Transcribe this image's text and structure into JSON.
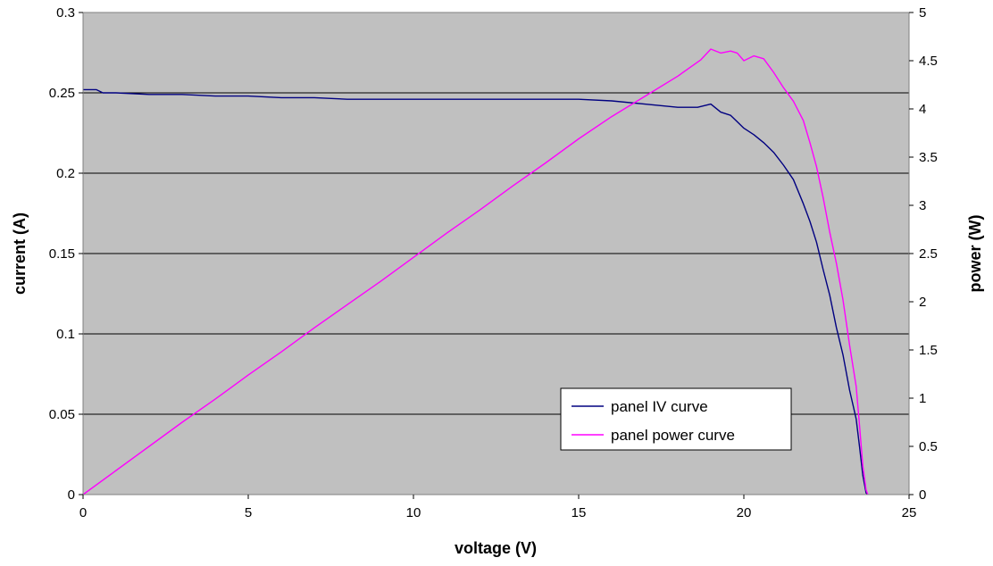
{
  "chart_data": {
    "type": "line",
    "title": "",
    "xlabel": "voltage (V)",
    "ylabel": "current (A)",
    "y2label": "power (W)",
    "xlim": [
      0,
      25
    ],
    "ylim": [
      0,
      0.3
    ],
    "y2lim": [
      0,
      5
    ],
    "x_ticks": [
      "0",
      "5",
      "10",
      "15",
      "20",
      "25"
    ],
    "y_ticks": [
      "0",
      "0.05",
      "0.1",
      "0.15",
      "0.2",
      "0.25",
      "0.3"
    ],
    "y2_ticks": [
      "0",
      "0.5",
      "1",
      "1.5",
      "2",
      "2.5",
      "3",
      "3.5",
      "4",
      "4.5",
      "5"
    ],
    "grid": "horizontal",
    "background": "#c0c0c0",
    "legend": "bottom-right",
    "series": [
      {
        "name": "panel IV curve",
        "axis": "left",
        "color": "#000080",
        "points": [
          [
            0.0,
            0.252
          ],
          [
            0.4,
            0.252
          ],
          [
            0.6,
            0.25
          ],
          [
            1.0,
            0.25
          ],
          [
            2.0,
            0.249
          ],
          [
            3.0,
            0.249
          ],
          [
            4.0,
            0.248
          ],
          [
            5.0,
            0.248
          ],
          [
            6.0,
            0.247
          ],
          [
            7.0,
            0.247
          ],
          [
            8.0,
            0.246
          ],
          [
            10.0,
            0.246
          ],
          [
            12.0,
            0.246
          ],
          [
            14.0,
            0.246
          ],
          [
            15.0,
            0.246
          ],
          [
            16.0,
            0.245
          ],
          [
            17.0,
            0.243
          ],
          [
            18.0,
            0.241
          ],
          [
            18.6,
            0.241
          ],
          [
            19.0,
            0.243
          ],
          [
            19.3,
            0.238
          ],
          [
            19.6,
            0.236
          ],
          [
            19.8,
            0.232
          ],
          [
            20.0,
            0.228
          ],
          [
            20.3,
            0.224
          ],
          [
            20.6,
            0.219
          ],
          [
            20.9,
            0.213
          ],
          [
            21.2,
            0.205
          ],
          [
            21.5,
            0.196
          ],
          [
            21.8,
            0.181
          ],
          [
            22.0,
            0.17
          ],
          [
            22.2,
            0.157
          ],
          [
            22.4,
            0.14
          ],
          [
            22.6,
            0.124
          ],
          [
            22.8,
            0.104
          ],
          [
            23.0,
            0.087
          ],
          [
            23.2,
            0.065
          ],
          [
            23.4,
            0.047
          ],
          [
            23.5,
            0.03
          ],
          [
            23.6,
            0.012
          ],
          [
            23.7,
            0.001
          ],
          [
            23.75,
            0.0
          ]
        ]
      },
      {
        "name": "panel power curve",
        "axis": "right",
        "color": "#ff00ff",
        "points": [
          [
            0.0,
            0.0
          ],
          [
            1.0,
            0.25
          ],
          [
            2.0,
            0.5
          ],
          [
            3.0,
            0.75
          ],
          [
            4.0,
            0.99
          ],
          [
            5.0,
            1.24
          ],
          [
            6.0,
            1.48
          ],
          [
            7.0,
            1.73
          ],
          [
            8.0,
            1.97
          ],
          [
            9.0,
            2.21
          ],
          [
            10.0,
            2.46
          ],
          [
            11.0,
            2.71
          ],
          [
            12.0,
            2.95
          ],
          [
            13.0,
            3.2
          ],
          [
            14.0,
            3.44
          ],
          [
            15.0,
            3.69
          ],
          [
            16.0,
            3.92
          ],
          [
            17.0,
            4.13
          ],
          [
            18.0,
            4.34
          ],
          [
            18.7,
            4.51
          ],
          [
            19.0,
            4.62
          ],
          [
            19.3,
            4.58
          ],
          [
            19.6,
            4.6
          ],
          [
            19.8,
            4.58
          ],
          [
            20.0,
            4.5
          ],
          [
            20.3,
            4.55
          ],
          [
            20.6,
            4.52
          ],
          [
            20.9,
            4.38
          ],
          [
            21.2,
            4.22
          ],
          [
            21.5,
            4.08
          ],
          [
            21.8,
            3.88
          ],
          [
            22.0,
            3.65
          ],
          [
            22.2,
            3.4
          ],
          [
            22.4,
            3.08
          ],
          [
            22.6,
            2.72
          ],
          [
            22.8,
            2.4
          ],
          [
            23.0,
            2.02
          ],
          [
            23.2,
            1.55
          ],
          [
            23.4,
            1.12
          ],
          [
            23.5,
            0.72
          ],
          [
            23.6,
            0.3
          ],
          [
            23.7,
            0.05
          ],
          [
            23.75,
            0.0
          ]
        ]
      }
    ]
  }
}
